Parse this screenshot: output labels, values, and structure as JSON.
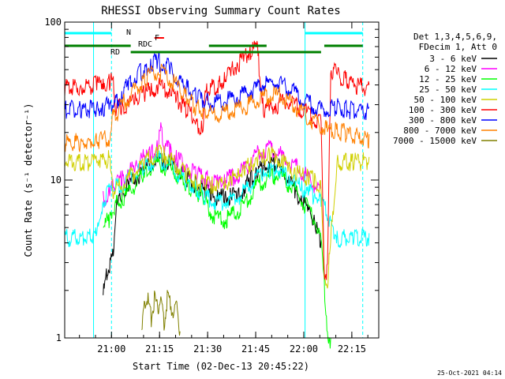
{
  "chart_data": {
    "type": "line",
    "title": "RHESSI Observing Summary Count Rates",
    "xlabel": "Start Time (02-Dec-13 20:45:22)",
    "ylabel": "Count Rate (s⁻¹ detector⁻¹)",
    "x_unit": "minutes since 20:45:22",
    "xlim": [
      0,
      98
    ],
    "ylim": [
      1,
      100
    ],
    "yscale": "log",
    "x_ticks": [
      {
        "label": "21:00",
        "value": 14.6
      },
      {
        "label": "21:15",
        "value": 29.6
      },
      {
        "label": "21:30",
        "value": 44.6
      },
      {
        "label": "21:45",
        "value": 59.6
      },
      {
        "label": "22:00",
        "value": 74.6
      },
      {
        "label": "22:15",
        "value": 89.6
      }
    ],
    "y_ticks": [
      {
        "label": "1",
        "value": 1
      },
      {
        "label": "10",
        "value": 10
      },
      {
        "label": "100",
        "value": 100
      }
    ],
    "legend_header": [
      "Det 1,3,4,5,6,9,",
      "FDecim 1, Att 0"
    ],
    "legend_position": "right",
    "series": [
      {
        "name": "3 - 6 keV",
        "color": "#000000",
        "x": [
          12,
          13,
          14,
          15,
          16,
          18,
          20,
          22,
          25,
          27,
          29,
          31,
          33,
          35,
          38,
          41,
          44,
          46,
          48,
          50,
          52,
          54,
          56,
          58,
          60,
          62,
          64,
          65,
          66,
          68,
          70,
          72,
          74,
          76,
          78,
          79,
          80
        ],
        "y": [
          2,
          2.6,
          3.1,
          3.6,
          7,
          9,
          10,
          11,
          12.5,
          13.5,
          14,
          14,
          13.5,
          12.5,
          11,
          10,
          9,
          8.5,
          8.3,
          8.3,
          8.4,
          8.7,
          9.5,
          11,
          12,
          13,
          13.5,
          14,
          13.5,
          12,
          10.5,
          9,
          8,
          7,
          6,
          5,
          4.2
        ]
      },
      {
        "name": "6 - 12 keV",
        "color": "#ff00ff",
        "x": [
          12,
          14,
          15,
          16,
          18,
          20,
          22,
          25,
          27,
          29,
          30,
          31,
          33,
          35,
          38,
          41,
          44,
          46,
          48,
          50,
          52,
          54,
          56,
          58,
          60,
          62,
          64,
          66,
          68,
          70,
          72,
          74,
          76,
          78,
          80
        ],
        "y": [
          8,
          9,
          9.5,
          10,
          11,
          12,
          13,
          15,
          16,
          17,
          22,
          18,
          16,
          15,
          13,
          12,
          11,
          10.5,
          10.5,
          10.7,
          11,
          11.5,
          12.5,
          14,
          16,
          16.5,
          17,
          16,
          15,
          14,
          13,
          12,
          11,
          10,
          9
        ]
      },
      {
        "name": "12 - 25 keV",
        "color": "#00ff00",
        "x": [
          12,
          14,
          15,
          16,
          18,
          20,
          22,
          25,
          27,
          29,
          31,
          33,
          35,
          38,
          41,
          44,
          46,
          48,
          50,
          52,
          54,
          56,
          58,
          60,
          62,
          64,
          66,
          68,
          70,
          72,
          74,
          76,
          78,
          80,
          82,
          83
        ],
        "y": [
          5.5,
          6,
          7,
          7.5,
          8,
          9,
          10,
          12,
          13,
          13.5,
          13,
          12.5,
          11.5,
          10,
          9,
          8,
          6.5,
          6,
          6,
          6.3,
          6.8,
          7.5,
          8.5,
          9.8,
          10.5,
          11,
          11.5,
          11,
          10,
          9,
          8,
          7,
          6,
          4.2,
          1.2,
          1
        ]
      },
      {
        "name": "25 - 50 keV",
        "color": "#00ffff",
        "x": [
          0,
          8,
          10,
          12,
          14,
          15,
          16,
          18,
          20,
          22,
          25,
          27,
          29,
          31,
          33,
          35,
          38,
          41,
          44,
          46,
          48,
          50,
          52,
          54,
          56,
          58,
          60,
          62,
          64,
          66,
          68,
          70,
          72,
          74,
          76,
          78,
          80,
          85,
          90,
          95
        ],
        "y": [
          4.6,
          4.6,
          4.7,
          8,
          9,
          9.3,
          9.6,
          10,
          11,
          12,
          13,
          14,
          14.5,
          14,
          13,
          12,
          10.5,
          9.5,
          8.5,
          8,
          7.8,
          7.8,
          8,
          8.3,
          9,
          10,
          11,
          11.8,
          12.3,
          12.5,
          12,
          11,
          10.3,
          9.5,
          9,
          8.5,
          8,
          4.6,
          4.6,
          4.6
        ]
      },
      {
        "name": "50 - 100 keV",
        "color": "#d0d000",
        "x": [
          0,
          9,
          10,
          14,
          15,
          16,
          18,
          20,
          22,
          25,
          27,
          29,
          31,
          33,
          35,
          38,
          41,
          44,
          46,
          48,
          50,
          52,
          54,
          56,
          58,
          60,
          62,
          64,
          66,
          68,
          70,
          72,
          74,
          76,
          78,
          80,
          81,
          82,
          85,
          90,
          95
        ],
        "y": [
          14,
          14,
          14.3,
          14.5,
          9,
          9.5,
          10,
          11,
          12,
          14,
          15,
          16,
          15.5,
          14.5,
          13,
          11.5,
          10.5,
          10,
          10,
          10,
          10.3,
          10.8,
          11.5,
          12.5,
          13.5,
          14.5,
          15,
          15.5,
          15,
          14,
          13,
          12,
          11.5,
          11,
          10.5,
          10,
          2.4,
          2.4,
          14,
          14,
          14
        ]
      },
      {
        "name": "100 - 300 keV",
        "color": "#ff0000",
        "x": [
          0,
          5,
          10,
          12,
          14,
          15,
          16,
          18,
          20,
          22,
          25,
          27,
          29,
          31,
          33,
          35,
          38,
          41,
          43,
          44,
          45,
          48,
          50,
          52,
          54,
          56,
          58,
          60,
          62,
          64,
          66,
          68,
          70,
          72,
          74,
          76,
          78,
          80,
          81,
          82,
          83,
          85,
          88,
          92,
          95
        ],
        "y": [
          41,
          42,
          43,
          44,
          45,
          46,
          30,
          31,
          33,
          35,
          38,
          40,
          42,
          41,
          39,
          35,
          30,
          25,
          22,
          38,
          40,
          43,
          46,
          52,
          58,
          64,
          70,
          76,
          30,
          31,
          32,
          33,
          33,
          32,
          30,
          28,
          26,
          24,
          2.8,
          2.8,
          54,
          50,
          46,
          42,
          40
        ]
      },
      {
        "name": "300 - 800 keV",
        "color": "#0000ff",
        "x": [
          0,
          5,
          10,
          12,
          14,
          15,
          16,
          18,
          20,
          22,
          25,
          27,
          29,
          31,
          33,
          35,
          38,
          41,
          44,
          46,
          48,
          50,
          52,
          54,
          56,
          58,
          60,
          62,
          64,
          66,
          68,
          70,
          72,
          74,
          76,
          78,
          80,
          82,
          85,
          88,
          92,
          95
        ],
        "y": [
          30,
          30,
          30.5,
          31,
          31.5,
          32,
          33,
          38,
          43,
          48,
          54,
          58,
          60,
          58,
          54,
          48,
          41,
          36,
          34,
          33,
          33.5,
          34,
          35,
          36.5,
          38,
          39.5,
          41,
          43,
          44,
          44.5,
          43,
          41,
          38,
          35,
          33,
          31,
          30,
          30,
          31,
          30,
          29,
          29
        ]
      },
      {
        "name": "800 - 7000 keV",
        "color": "#ff8000",
        "x": [
          0,
          5,
          10,
          12,
          14,
          15,
          16,
          18,
          20,
          22,
          25,
          27,
          29,
          31,
          33,
          35,
          38,
          41,
          44,
          46,
          48,
          50,
          52,
          54,
          56,
          58,
          60,
          62,
          64,
          66,
          68,
          70,
          72,
          74,
          76,
          78,
          80,
          82,
          85,
          88,
          92,
          95
        ],
        "y": [
          18.5,
          18.5,
          19,
          19.5,
          20,
          27,
          28,
          32,
          36,
          40,
          46,
          50,
          52,
          50,
          46,
          42,
          36,
          31,
          29,
          28,
          28,
          28.5,
          29,
          30,
          31,
          32.5,
          34,
          35.5,
          36.5,
          37,
          36,
          34,
          31.5,
          29,
          27,
          25,
          24,
          22.5,
          22,
          21,
          20,
          19.5
        ]
      },
      {
        "name": "7000 - 15000 keV",
        "color": "#808000",
        "x": [
          24,
          25,
          26,
          27,
          28,
          29,
          30,
          31,
          32,
          33,
          34,
          35,
          36
        ],
        "y": [
          1.1,
          1.8,
          1.9,
          1.4,
          1.9,
          1.7,
          1.9,
          1.3,
          1.9,
          1.8,
          1.5,
          1.9,
          1.1
        ]
      }
    ],
    "annotations": [
      {
        "text": "N",
        "color": "#00e0e0"
      },
      {
        "text": "F",
        "color": "#ff0000"
      },
      {
        "text": "RD",
        "color": "#008000"
      },
      {
        "text": "RDC",
        "color": "#008000"
      }
    ],
    "timestamp": "25-Oct-2021 04:14"
  }
}
